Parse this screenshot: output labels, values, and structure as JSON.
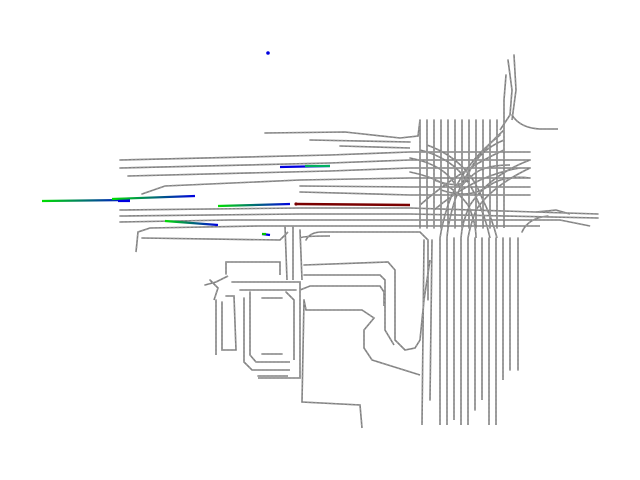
{
  "colors": {
    "background": "#ffffff",
    "lane": "#808080",
    "ego_track": "#7a0000",
    "agent_start": "#00e000",
    "agent_end": "#0000e0"
  },
  "legend": []
}
